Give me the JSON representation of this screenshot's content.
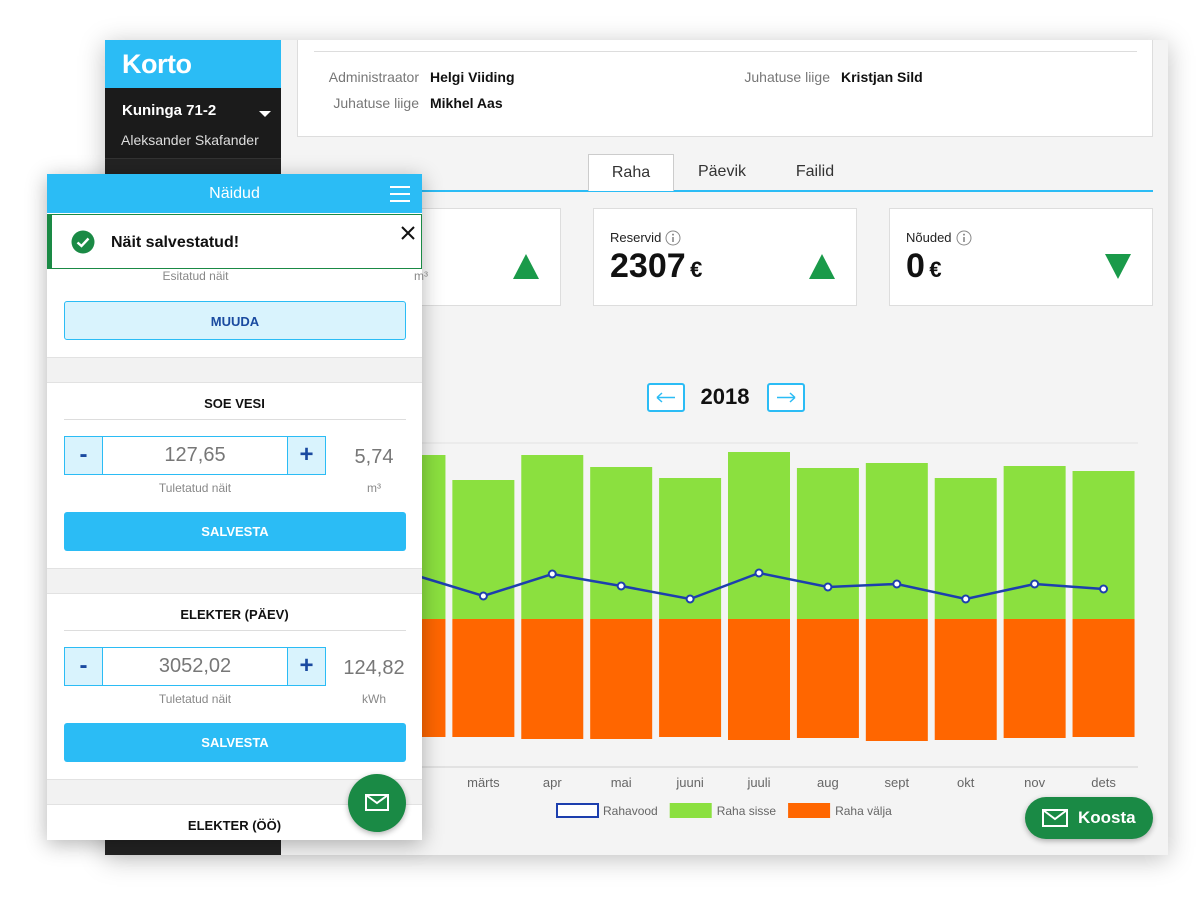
{
  "sidebar": {
    "logo": "Korto",
    "building": "Kuninga 71-2",
    "user": "Aleksander Skafander"
  },
  "info": {
    "rows": [
      {
        "label": "Administraator",
        "value": "Helgi Viiding"
      },
      {
        "label": "Juhatuse liige",
        "value": "Kristjan Sild"
      },
      {
        "label": "Juhatuse liige",
        "value": "Mikhel Aas"
      }
    ]
  },
  "tabs": [
    "Raha",
    "Päevik",
    "Failid"
  ],
  "cards": [
    {
      "label": "Reservid",
      "value": 2307,
      "unit": "€"
    },
    {
      "label": "Nõuded",
      "value": 0,
      "unit": "€"
    }
  ],
  "year": "2018",
  "chart_data": {
    "type": "bar",
    "categories": [
      null,
      "märts",
      "apr",
      "mai",
      "juuni",
      "juuli",
      "aug",
      "sept",
      "okt",
      "nov",
      "dets"
    ],
    "series": [
      {
        "name": "Rahavood",
        "type": "line",
        "color": "#1d3fae",
        "values": [
          44,
          23,
          45,
          33,
          20,
          46,
          32,
          35,
          20,
          35,
          30
        ]
      },
      {
        "name": "Raha sisse",
        "color": "#8be03f",
        "values": [
          164,
          139,
          164,
          152,
          141,
          167,
          151,
          156,
          141,
          153,
          148
        ]
      },
      {
        "name": "Raha välja",
        "color": "#ff6600",
        "values": [
          -118,
          -118,
          -120,
          -120,
          -118,
          -121,
          -119,
          -122,
          -121,
          -119,
          -118
        ]
      }
    ],
    "ylim": [
      -148,
      176
    ]
  },
  "compose": "Koosta",
  "mobile": {
    "title": "Näidud",
    "toast": "Näit salvestatud!",
    "decrement": "-",
    "increment": "+",
    "partial": {
      "note": "Esitatud näit",
      "unit": "m³",
      "button": "MUUDA"
    },
    "meters": [
      {
        "name": "SOE VESI",
        "value": "127,65",
        "usage": "5,74",
        "note": "Tuletatud näit",
        "unit": "m³",
        "button": "SALVESTA"
      },
      {
        "name": "ELEKTER (PÄEV)",
        "value": "3052,02",
        "usage": "124,82",
        "note": "Tuletatud näit",
        "unit": "kWh",
        "button": "SALVESTA"
      },
      {
        "name": "ELEKTER (ÖÖ)"
      }
    ]
  }
}
